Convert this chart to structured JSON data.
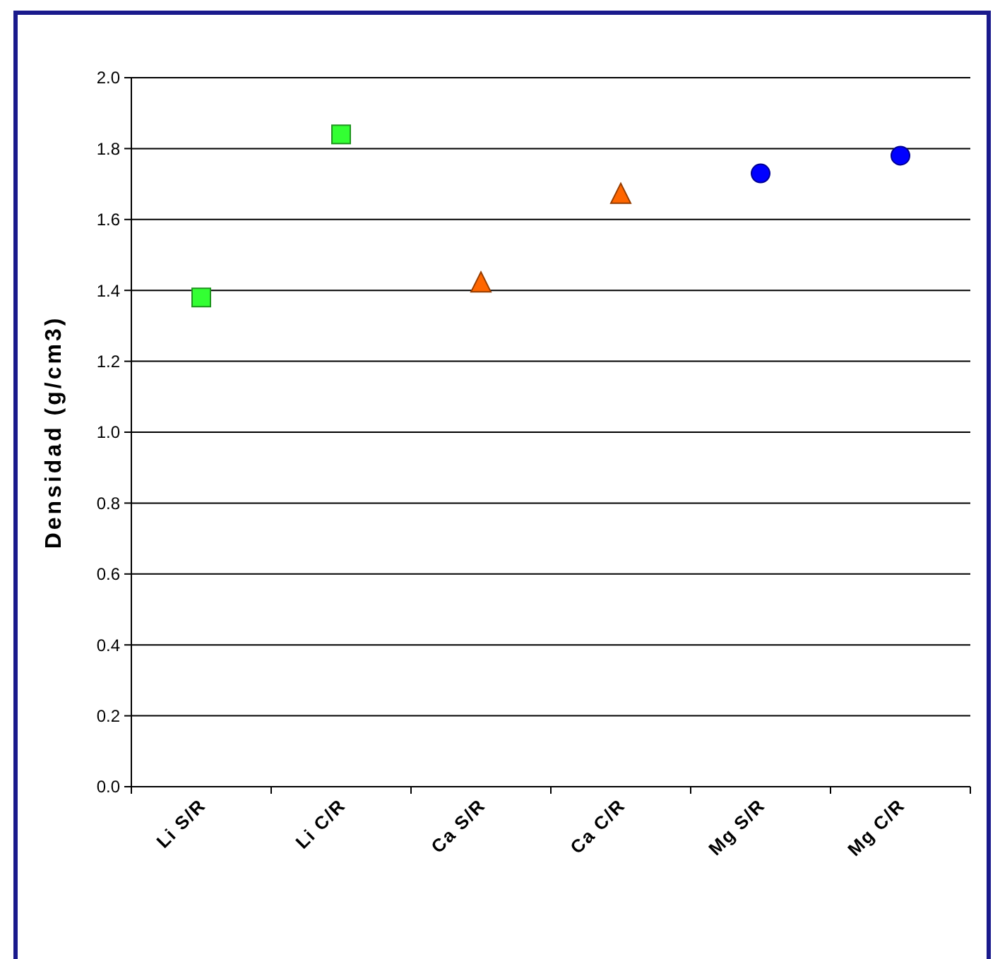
{
  "chart_data": {
    "type": "scatter",
    "ylabel": "Densidad (g/cm3)",
    "categories": [
      "Li S/R",
      "Li C/R",
      "Ca S/R",
      "Ca C/R",
      "Mg S/R",
      "Mg C/R"
    ],
    "series": [
      {
        "color": "#33ff33",
        "marker": "square",
        "values": [
          1.38,
          1.84,
          null,
          null,
          null,
          null
        ]
      },
      {
        "color": "#ff6600",
        "marker": "triangle",
        "values": [
          null,
          null,
          1.42,
          1.67,
          null,
          null
        ]
      },
      {
        "color": "#0000ff",
        "marker": "circle",
        "values": [
          null,
          null,
          null,
          null,
          1.73,
          1.78
        ]
      }
    ],
    "ylim": [
      0,
      2
    ],
    "yticks": [
      {
        "value": 0,
        "label": "0.0"
      },
      {
        "value": 0.2,
        "label": "0.2"
      },
      {
        "value": 0.4,
        "label": "0.4"
      },
      {
        "value": 0.6,
        "label": "0.6"
      },
      {
        "value": 0.8,
        "label": "0.8"
      },
      {
        "value": 1,
        "label": "1.0"
      },
      {
        "value": 1.2,
        "label": "1.2"
      },
      {
        "value": 1.4,
        "label": "1.4"
      },
      {
        "value": 1.6,
        "label": "1.6"
      },
      {
        "value": 1.8,
        "label": "1.8"
      },
      {
        "value": 2,
        "label": "2.0"
      }
    ],
    "grid": "y"
  }
}
